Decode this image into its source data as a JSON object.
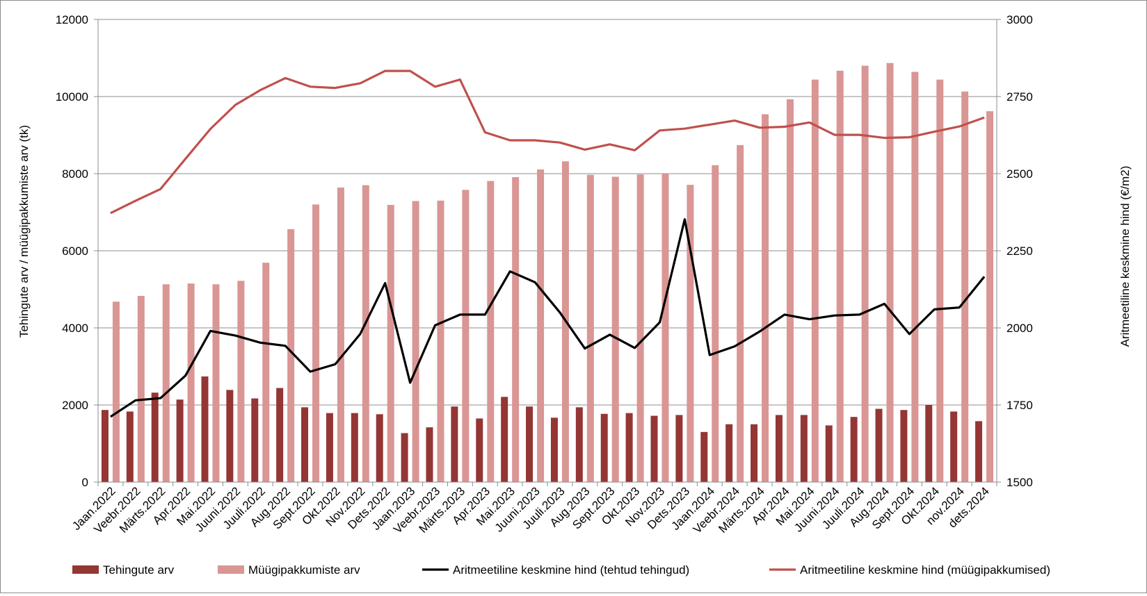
{
  "chart_data": {
    "type": "bar",
    "categories": [
      "Jaan.2022",
      "Veebr.2022",
      "Märts.2022",
      "Apr.2022",
      "Mai.2022",
      "Juuni.2022",
      "Juuli.2022",
      "Aug.2022",
      "Sept.2022",
      "Okt.2022",
      "Nov.2022",
      "Dets.2022",
      "Jaan.2023",
      "Veebr.2023",
      "Märts.2023",
      "Apr.2023",
      "Mai.2023",
      "Juuni.2023",
      "Juuli.2023",
      "Aug.2023",
      "Sept.2023",
      "Okt.2023",
      "Nov.2023",
      "Dets.2023",
      "Jaan.2024",
      "Veebr.2024",
      "Märts.2024",
      "Apr.2024",
      "Mai.2024",
      "Juuni.2024",
      "Juuli.2024",
      "Aug.2024",
      "Sept.2024",
      "Okt.2024",
      "nov.2024",
      "dets.2024"
    ],
    "y_axis_left": {
      "label": "Tehingute arv / müügipakkumiste arv (tk)",
      "range": [
        0,
        12000
      ],
      "ticks": [
        "0",
        "2000",
        "4000",
        "6000",
        "8000",
        "10000",
        "12000"
      ]
    },
    "y_axis_right": {
      "label": "Aritmeetiline keskmine hind (€/m2)",
      "range": [
        1500,
        3000
      ],
      "ticks": [
        "1500",
        "1750",
        "2000",
        "2250",
        "2500",
        "2750",
        "3000"
      ]
    },
    "grid": true,
    "legend_position": "bottom",
    "series": [
      {
        "name": "Tehingute arv",
        "type": "bar",
        "axis": "left",
        "color": "#943634",
        "values": [
          1870,
          1830,
          2320,
          2140,
          2740,
          2390,
          2170,
          2440,
          1940,
          1790,
          1790,
          1760,
          1270,
          1420,
          1960,
          1650,
          2210,
          1960,
          1670,
          1940,
          1770,
          1790,
          1720,
          1740,
          1300,
          1500,
          1500,
          1740,
          1740,
          1470,
          1690,
          1900,
          1870,
          2000,
          1830,
          1580
        ]
      },
      {
        "name": "Müügipakkumiste arv",
        "type": "bar",
        "axis": "left",
        "color": "#d99694",
        "values": [
          4680,
          4830,
          5130,
          5150,
          5130,
          5220,
          5690,
          6560,
          7200,
          7640,
          7700,
          7190,
          7290,
          7300,
          7580,
          7810,
          7910,
          8110,
          8320,
          7970,
          7920,
          7980,
          8000,
          7710,
          8220,
          8740,
          9540,
          9930,
          10440,
          10670,
          10800,
          10870,
          10640,
          10440,
          10130,
          9620
        ]
      },
      {
        "name": "Aritmeetiline keskmine hind (tehtud tehingud)",
        "type": "line",
        "axis": "right",
        "color": "#000000",
        "values": [
          1712,
          1765,
          1772,
          1845,
          1990,
          1975,
          1952,
          1942,
          1858,
          1882,
          1980,
          2145,
          1822,
          2008,
          2043,
          2043,
          2183,
          2148,
          2050,
          1933,
          1978,
          1935,
          2018,
          2352,
          1912,
          1940,
          1988,
          2043,
          2028,
          2040,
          2043,
          2078,
          1980,
          2060,
          2066,
          2166
        ]
      },
      {
        "name": "Aritmeetiline keskmine hind (müügipakkumised)",
        "type": "line",
        "axis": "right",
        "color": "#c0504d",
        "values": [
          2372,
          2412,
          2450,
          2548,
          2645,
          2723,
          2771,
          2810,
          2782,
          2778,
          2793,
          2833,
          2833,
          2782,
          2805,
          2634,
          2608,
          2608,
          2601,
          2578,
          2595,
          2576,
          2640,
          2646,
          2659,
          2672,
          2649,
          2652,
          2666,
          2626,
          2626,
          2616,
          2618,
          2636,
          2653,
          2682
        ]
      }
    ]
  }
}
